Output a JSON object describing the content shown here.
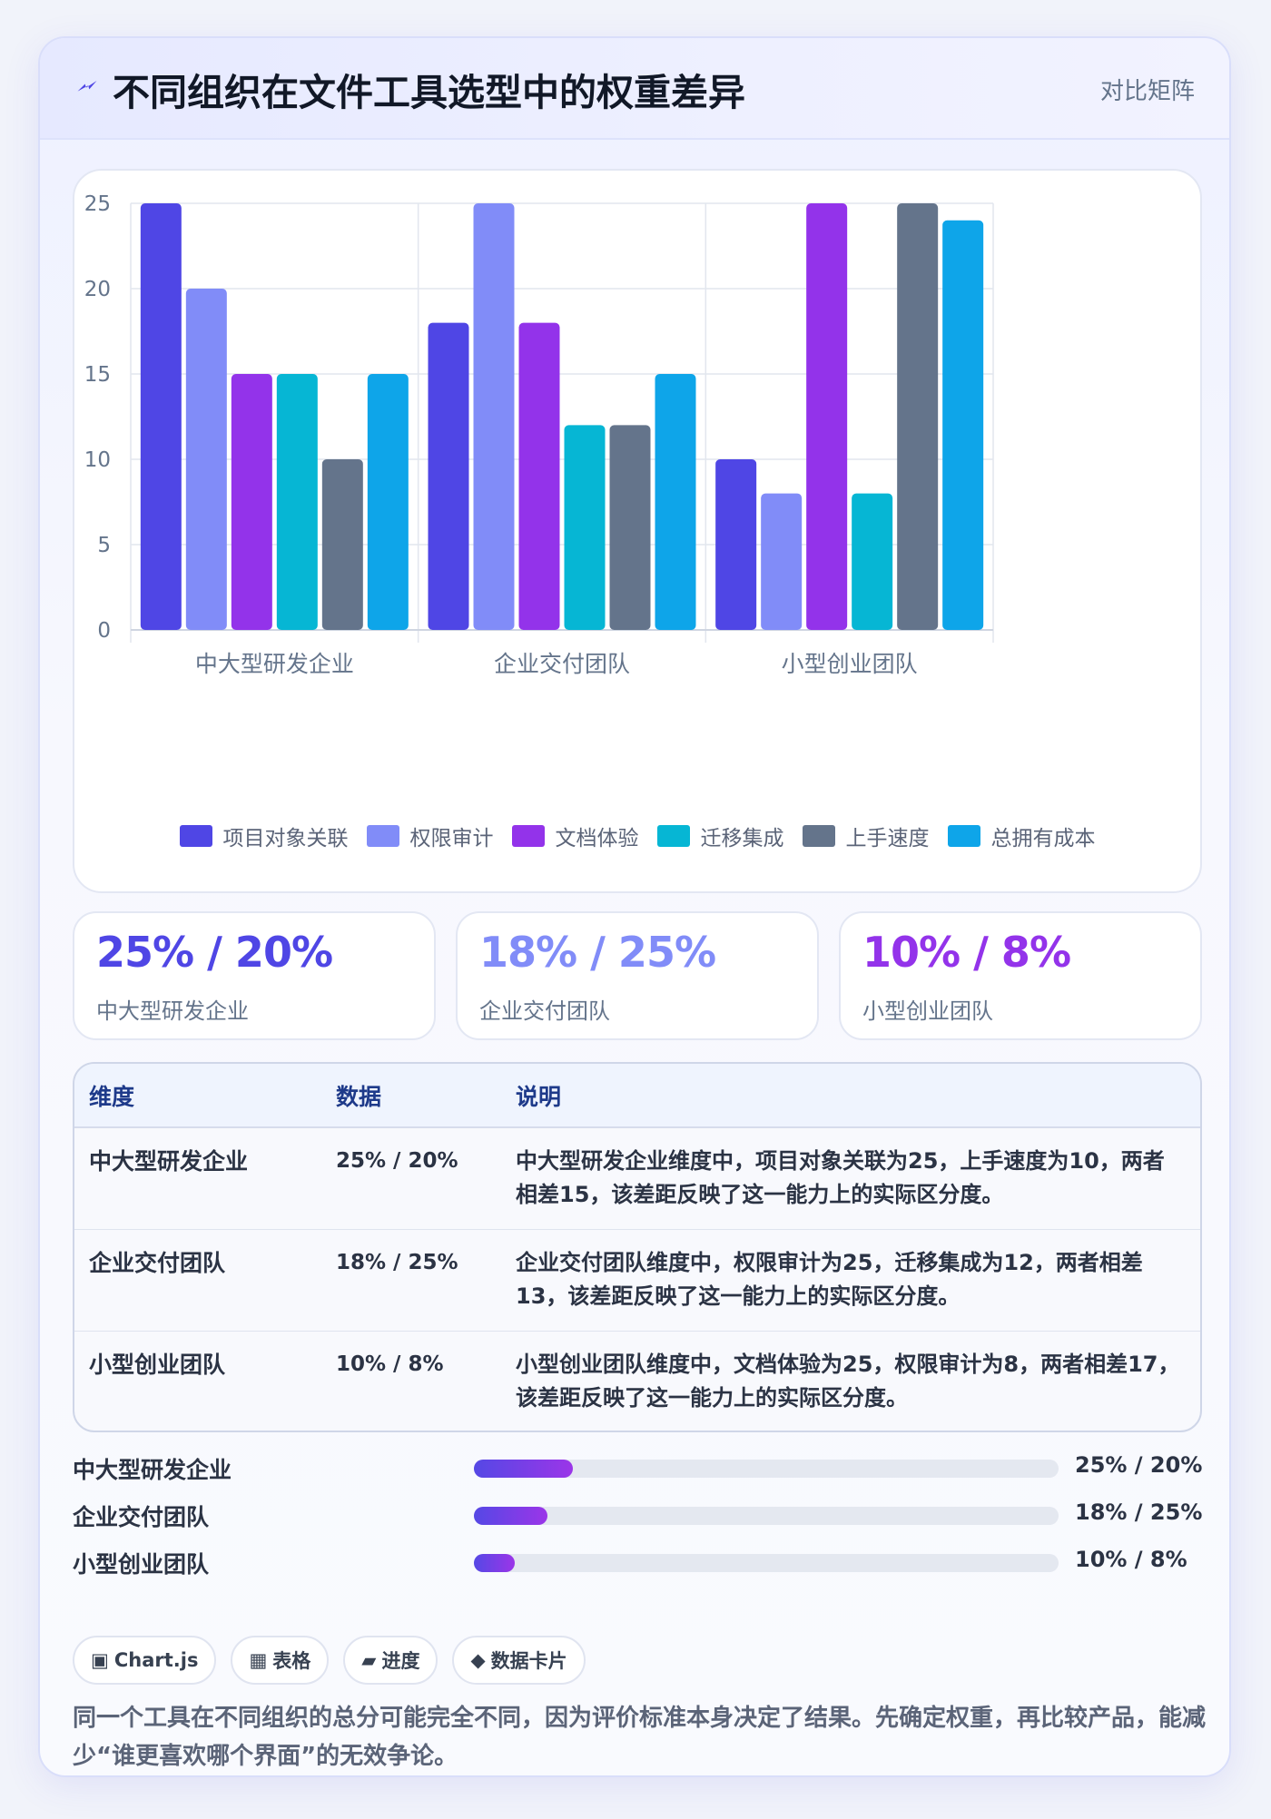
{
  "header": {
    "title": "不同组织在文件工具选型中的权重差异",
    "tag": "对比矩阵",
    "icon": "bolt-icon",
    "accent": "#4f46e5"
  },
  "chart_data": {
    "type": "bar",
    "categories": [
      "中大型研发企业",
      "企业交付团队",
      "小型创业团队"
    ],
    "series": [
      {
        "name": "项目对象关联",
        "color": "#4f46e5",
        "values": [
          25,
          18,
          10
        ]
      },
      {
        "name": "权限审计",
        "color": "#818cf8",
        "values": [
          20,
          25,
          8
        ]
      },
      {
        "name": "文档体验",
        "color": "#9333ea",
        "values": [
          15,
          18,
          25
        ]
      },
      {
        "name": "迁移集成",
        "color": "#06b6d4",
        "values": [
          15,
          12,
          8
        ]
      },
      {
        "name": "上手速度",
        "color": "#64748b",
        "values": [
          10,
          12,
          25
        ]
      },
      {
        "name": "总拥有成本",
        "color": "#0ea5e9",
        "values": [
          15,
          15,
          24
        ]
      }
    ],
    "ylim": [
      0,
      25
    ],
    "yticks": [
      0,
      5,
      10,
      15,
      20,
      25
    ],
    "grid": true,
    "legend_position": "bottom"
  },
  "stats": [
    {
      "value": "25% / 20%",
      "label": "中大型研发企业",
      "color": "#4f46e5"
    },
    {
      "value": "18% / 25%",
      "label": "企业交付团队",
      "color": "#818cf8"
    },
    {
      "value": "10% / 8%",
      "label": "小型创业团队",
      "color": "#9333ea"
    }
  ],
  "table": {
    "headers": [
      "维度",
      "数据",
      "说明"
    ],
    "rows": [
      {
        "dim": "中大型研发企业",
        "val": "25% / 20%",
        "desc": "中大型研发企业维度中，项目对象关联为25，上手速度为10，两者相差15，该差距反映了这一能力上的实际区分度。"
      },
      {
        "dim": "企业交付团队",
        "val": "18% / 25%",
        "desc": "企业交付团队维度中，权限审计为25，迁移集成为12，两者相差13，该差距反映了这一能力上的实际区分度。"
      },
      {
        "dim": "小型创业团队",
        "val": "10% / 8%",
        "desc": "小型创业团队维度中，文档体验为25，权限审计为8，两者相差17，该差距反映了这一能力上的实际区分度。"
      }
    ]
  },
  "progress": [
    {
      "label": "中大型研发企业",
      "value_text": "25% / 20%",
      "fraction": 0.17
    },
    {
      "label": "企业交付团队",
      "value_text": "18% / 25%",
      "fraction": 0.125
    },
    {
      "label": "小型创业团队",
      "value_text": "10% / 8%",
      "fraction": 0.07
    }
  ],
  "chips": [
    {
      "icon": "▣",
      "label": "Chart.js"
    },
    {
      "icon": "▦",
      "label": "表格"
    },
    {
      "icon": "▰",
      "label": "进度"
    },
    {
      "icon": "◆",
      "label": "数据卡片"
    }
  ],
  "note": "同一个工具在不同组织的总分可能完全不同，因为评价标准本身决定了结果。先确定权重，再比较产品，能减少“谁更喜欢哪个界面”的无效争论。"
}
